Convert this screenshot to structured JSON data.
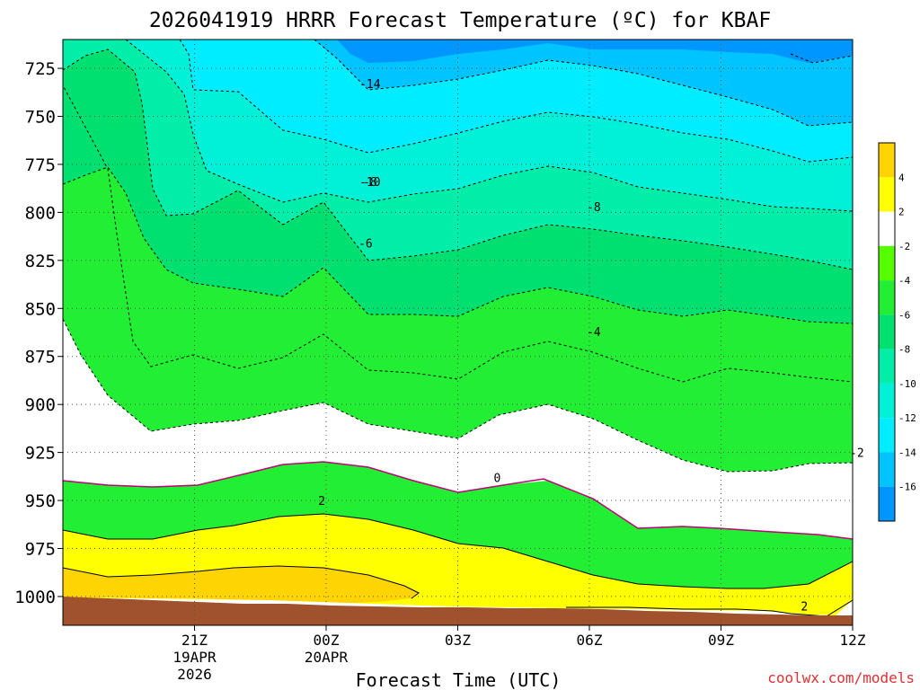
{
  "chart_data": {
    "type": "contour",
    "title": "2026041919 HRRR Forecast Temperature (ºC) for KBAF",
    "xlabel": "Forecast Time (UTC)",
    "credit": "coolwx.com/models",
    "y_ticks": [
      "725",
      "750",
      "775",
      "800",
      "825",
      "850",
      "875",
      "900",
      "925",
      "950",
      "975",
      "1000"
    ],
    "y_values": [
      725,
      750,
      775,
      800,
      825,
      850,
      875,
      900,
      925,
      950,
      975,
      1000
    ],
    "ylim": [
      1015,
      710
    ],
    "xlim_hours": [
      -1,
      17
    ],
    "x_ticks": [
      {
        "hour": 2,
        "label": "21Z",
        "sub1": "19APR",
        "sub2": "2026"
      },
      {
        "hour": 5,
        "label": "00Z",
        "sub1": "20APR",
        "sub2": ""
      },
      {
        "hour": 8,
        "label": "03Z",
        "sub1": "",
        "sub2": ""
      },
      {
        "hour": 11,
        "label": "06Z",
        "sub1": "",
        "sub2": ""
      },
      {
        "hour": 14,
        "label": "09Z",
        "sub1": "",
        "sub2": ""
      },
      {
        "hour": 17,
        "label": "12Z",
        "sub1": "",
        "sub2": ""
      }
    ],
    "grid": true,
    "contour_labels": [
      {
        "text": "-14",
        "hour": 6.0,
        "p": 733
      },
      {
        "text": "-10",
        "hour": 6.0,
        "p": 784
      },
      {
        "text": "-8",
        "hour": 11.1,
        "p": 797
      },
      {
        "text": "-8",
        "hour": 6.0,
        "p": 784
      },
      {
        "text": "-6",
        "hour": 5.9,
        "p": 816
      },
      {
        "text": "-4",
        "hour": 11.1,
        "p": 862
      },
      {
        "text": "-2",
        "hour": 17.1,
        "p": 925
      },
      {
        "text": "0",
        "hour": 8.9,
        "p": 938
      },
      {
        "text": "2",
        "hour": 4.9,
        "p": 950
      },
      {
        "text": "2",
        "hour": 15.9,
        "p": 1005
      }
    ],
    "colorbar": {
      "colors": [
        "#ffd400",
        "#ffff00",
        "#ffffff",
        "#55ff00",
        "#22ee33",
        "#00e070",
        "#00eea8",
        "#00f0d8",
        "#00ecff",
        "#00c4ff",
        "#0096ff"
      ],
      "labels": [
        "4",
        "2",
        "-2",
        "-4",
        "-6",
        "-8",
        "-10",
        "-12",
        "-14",
        "-16"
      ]
    },
    "ground_color": "#a0522d"
  }
}
